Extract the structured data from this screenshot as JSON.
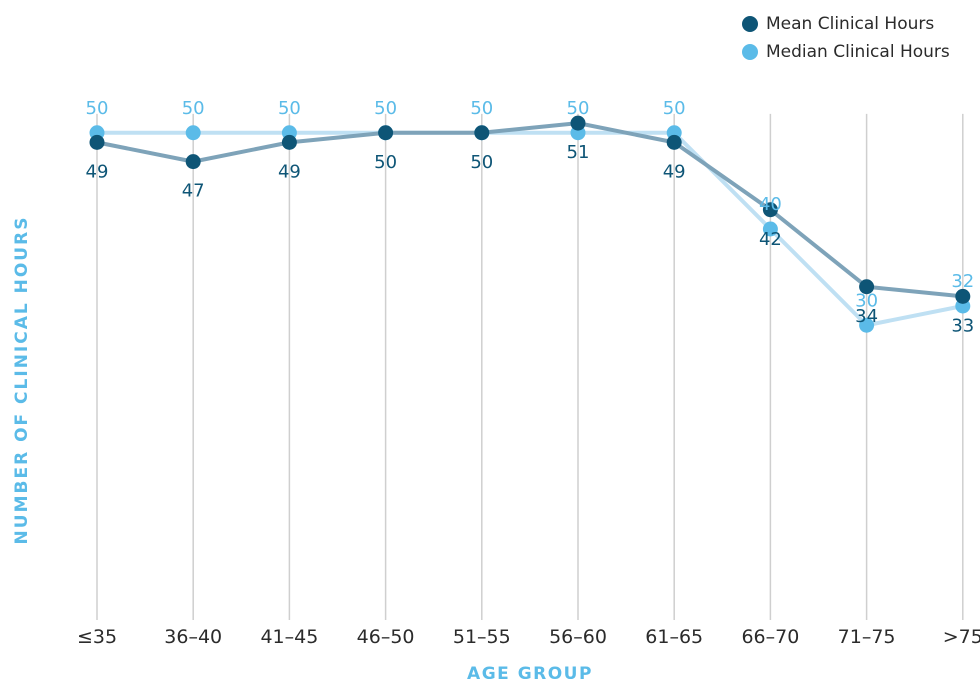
{
  "chart_data": {
    "type": "line",
    "categories": [
      "≤35",
      "36–40",
      "41–45",
      "46–50",
      "51–55",
      "56–60",
      "61–65",
      "66–70",
      "71–75",
      ">75"
    ],
    "series": [
      {
        "name": "Mean Clinical Hours",
        "values": [
          49,
          47,
          49,
          50,
          50,
          51,
          49,
          42,
          34,
          33
        ],
        "color": "#0e5576",
        "line_color": "#7ea3b9",
        "label_position": "below"
      },
      {
        "name": "Median Clinical Hours",
        "values": [
          50,
          50,
          50,
          50,
          50,
          50,
          50,
          40,
          30,
          32
        ],
        "color": "#5bbbe8",
        "line_color": "#bfe0f3",
        "label_position": "above"
      }
    ],
    "xlabel": "AGE GROUP",
    "ylabel": "NUMBER OF CLINICAL HOURS",
    "ylim": [
      0,
      53
    ],
    "legend_position": "top-right",
    "grid": "vertical"
  }
}
